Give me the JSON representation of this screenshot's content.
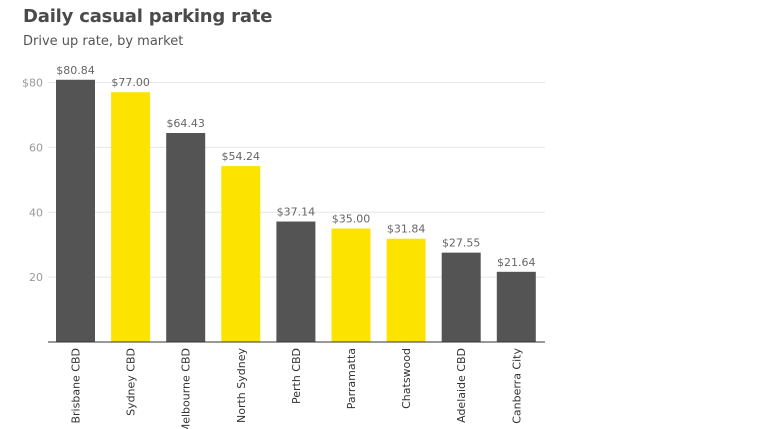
{
  "chart_data": {
    "type": "bar",
    "title": "Daily casual parking rate",
    "subtitle": "Drive up rate, by market",
    "categories": [
      "Brisbane CBD",
      "Sydney CBD",
      "Melbourne CBD",
      "North Sydney",
      "Perth CBD",
      "Parramatta",
      "Chatswood",
      "Adelaide CBD",
      "Canberra City"
    ],
    "values": [
      80.84,
      77.0,
      64.43,
      54.24,
      37.14,
      35.0,
      31.84,
      27.55,
      21.64
    ],
    "data_labels": [
      "$80.84",
      "$77.00",
      "$64.43",
      "$54.24",
      "$37.14",
      "$35.00",
      "$31.84",
      "$27.55",
      "$21.64"
    ],
    "bar_colors": [
      "#545454",
      "#fde400",
      "#545454",
      "#fde400",
      "#545454",
      "#fde400",
      "#fde400",
      "#545454",
      "#545454"
    ],
    "yticks": [
      20,
      40,
      60,
      80
    ],
    "ytick_labels": [
      "20",
      "40",
      "60",
      "$80"
    ],
    "ylim": [
      0,
      80
    ],
    "grid": true,
    "xlabel": "",
    "ylabel": ""
  }
}
